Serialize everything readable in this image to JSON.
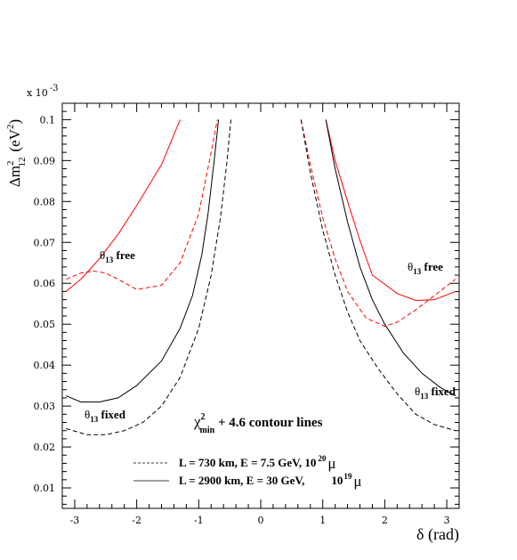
{
  "chart_data": {
    "type": "line",
    "xlabel": "δ (rad)",
    "ylabel": {
      "delta": "Δ",
      "m": "m",
      "sup": "2",
      "sub": "12",
      "units": "(eV",
      "units_sup": "2",
      "units_close": ")",
      "scale": "x 10",
      "scale_exp": "-3"
    },
    "xlim": [
      -3.2,
      3.2
    ],
    "ylim": [
      0.005,
      0.104
    ],
    "x_ticks": [
      -3,
      -2,
      -1,
      0,
      1,
      2,
      3
    ],
    "x_tick_labels": [
      "-3",
      "-2",
      "-1",
      "0",
      "1",
      "2",
      "3"
    ],
    "y_ticks": [
      0.01,
      0.02,
      0.03,
      0.04,
      0.05,
      0.06,
      0.07,
      0.08,
      0.09,
      0.1
    ],
    "y_tick_labels": [
      "0.01",
      "0.02",
      "0.03",
      "0.04",
      "0.05",
      "0.06",
      "0.07",
      "0.08",
      "0.09",
      "0.1"
    ],
    "grid": false,
    "series": [
      {
        "color": "#ff0000",
        "dash": "solid",
        "x": [
          -3.14,
          -2.9,
          -2.6,
          -2.3,
          -2.0,
          -1.6,
          -1.3
        ],
        "y": [
          0.058,
          0.061,
          0.066,
          0.072,
          0.079,
          0.089,
          0.1
        ]
      },
      {
        "color": "#ff0000",
        "dash": "dashed",
        "x": [
          -3.14,
          -2.9,
          -2.7,
          -2.5,
          -2.3,
          -2.0,
          -1.8,
          -1.6,
          -1.3,
          -1.0,
          -0.8,
          -0.7
        ],
        "y": [
          0.061,
          0.0625,
          0.063,
          0.0625,
          0.061,
          0.0585,
          0.059,
          0.0595,
          0.065,
          0.077,
          0.092,
          0.1
        ]
      },
      {
        "color": "#000000",
        "dash": "solid",
        "x": [
          -3.14,
          -2.9,
          -2.6,
          -2.3,
          -2.0,
          -1.6,
          -1.3,
          -1.1,
          -0.95,
          -0.85,
          -0.75,
          -0.68
        ],
        "y": [
          0.0325,
          0.031,
          0.031,
          0.032,
          0.035,
          0.041,
          0.049,
          0.057,
          0.067,
          0.077,
          0.09,
          0.1
        ]
      },
      {
        "color": "#000000",
        "dash": "dashed",
        "x": [
          -3.14,
          -2.8,
          -2.5,
          -2.2,
          -1.9,
          -1.6,
          -1.3,
          -1.0,
          -0.8,
          -0.65,
          -0.55,
          -0.48
        ],
        "y": [
          0.0245,
          0.023,
          0.023,
          0.024,
          0.026,
          0.03,
          0.037,
          0.049,
          0.062,
          0.076,
          0.089,
          0.1
        ]
      },
      {
        "color": "#ff0000",
        "dash": "solid",
        "x": [
          1.05,
          1.2,
          1.4,
          1.6,
          1.8,
          2.2,
          2.5,
          2.8,
          3.14
        ],
        "y": [
          0.1,
          0.09,
          0.08,
          0.0705,
          0.062,
          0.0575,
          0.0558,
          0.056,
          0.058
        ]
      },
      {
        "color": "#ff0000",
        "dash": "dashed",
        "x": [
          0.65,
          0.8,
          1.0,
          1.2,
          1.4,
          1.7,
          2.0,
          2.2,
          2.5,
          2.8,
          3.14
        ],
        "y": [
          0.1,
          0.089,
          0.076,
          0.066,
          0.058,
          0.0515,
          0.0495,
          0.0505,
          0.0535,
          0.057,
          0.061
        ]
      },
      {
        "color": "#000000",
        "dash": "solid",
        "x": [
          1.05,
          1.2,
          1.4,
          1.6,
          1.8,
          2.0,
          2.3,
          2.6,
          2.9,
          3.14
        ],
        "y": [
          0.1,
          0.088,
          0.075,
          0.064,
          0.056,
          0.05,
          0.043,
          0.038,
          0.0345,
          0.0325
        ]
      },
      {
        "color": "#000000",
        "dash": "dashed",
        "x": [
          0.65,
          0.8,
          1.0,
          1.2,
          1.4,
          1.6,
          1.9,
          2.2,
          2.5,
          2.8,
          3.14
        ],
        "y": [
          0.1,
          0.087,
          0.073,
          0.062,
          0.053,
          0.046,
          0.039,
          0.033,
          0.028,
          0.0255,
          0.024
        ]
      }
    ],
    "annotations": {
      "theta_free_left": {
        "theta": "θ",
        "sub": "13",
        "text": " free"
      },
      "theta_free_right": {
        "theta": "θ",
        "sub": "13",
        "text": " free"
      },
      "theta_fixed_left": {
        "theta": "θ",
        "sub": "13",
        "text": " fixed"
      },
      "theta_fixed_right": {
        "theta": "θ",
        "sub": "13",
        "text": " fixed"
      },
      "chi": {
        "chi": "χ",
        "sup": "2",
        "sub": "min",
        "text": " + 4.6    contour lines"
      }
    },
    "legend": {
      "placement": "bottom-center",
      "entries": [
        {
          "dash": "dashed",
          "color": "#000000",
          "text": "L = 730 km, E = 7.5 GeV, 10",
          "sup": "20",
          "mu": "μ"
        },
        {
          "dash": "solid",
          "color": "#000000",
          "text": "L = 2900 km, E = 30 GeV,",
          "sup": "19",
          "pre": "10",
          "mu": "μ"
        }
      ]
    }
  }
}
